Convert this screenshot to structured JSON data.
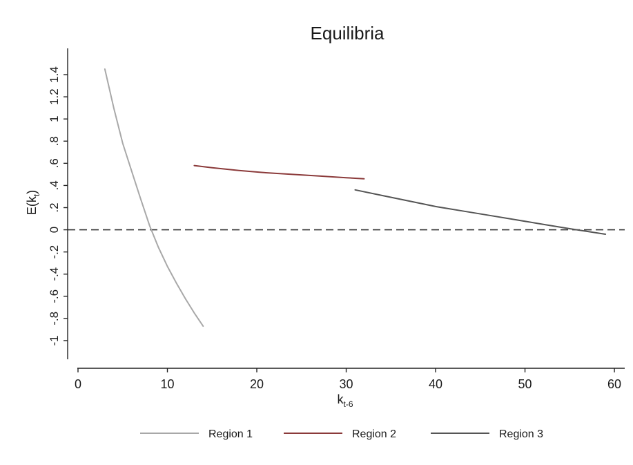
{
  "chart_data": {
    "type": "line",
    "title": "Equilibria",
    "xlabel": "k",
    "xlabel_sub": "t-6",
    "ylabel": "E(k",
    "ylabel_sub": "t",
    "ylabel_close": ")",
    "xlim": [
      0,
      61
    ],
    "ylim": [
      -1.1,
      1.5
    ],
    "xticks": [
      0,
      10,
      20,
      30,
      40,
      50,
      60
    ],
    "yticks": [
      -1,
      -0.8,
      -0.6,
      -0.4,
      -0.2,
      0,
      0.2,
      0.4,
      0.6,
      0.8,
      1,
      1.2,
      1.4
    ],
    "ytick_labels": [
      "-1",
      "-.8",
      "-.6",
      "-.4",
      "-.2",
      "0",
      ".2",
      ".4",
      ".6",
      ".8",
      "1",
      "1.2",
      "1.4"
    ],
    "reference_line": {
      "y": 0,
      "style": "dashed"
    },
    "grid": false,
    "legend_position": "bottom",
    "series": [
      {
        "name": "Region 1",
        "color": "#a8a8a8",
        "x": [
          3,
          4,
          5,
          6,
          7,
          8,
          9,
          10,
          11,
          12,
          13,
          14
        ],
        "y": [
          1.45,
          1.1,
          0.78,
          0.53,
          0.28,
          0.04,
          -0.16,
          -0.33,
          -0.48,
          -0.62,
          -0.75,
          -0.87
        ]
      },
      {
        "name": "Region 2",
        "color": "#8b3a3a",
        "x": [
          13,
          15,
          18,
          21,
          24,
          27,
          30,
          32
        ],
        "y": [
          0.58,
          0.56,
          0.535,
          0.515,
          0.5,
          0.485,
          0.47,
          0.46
        ]
      },
      {
        "name": "Region 3",
        "color": "#555555",
        "x": [
          31,
          34,
          37,
          40,
          43,
          46,
          49,
          52,
          55,
          59
        ],
        "y": [
          0.36,
          0.31,
          0.26,
          0.21,
          0.17,
          0.13,
          0.09,
          0.05,
          0.01,
          -0.04
        ]
      }
    ]
  }
}
